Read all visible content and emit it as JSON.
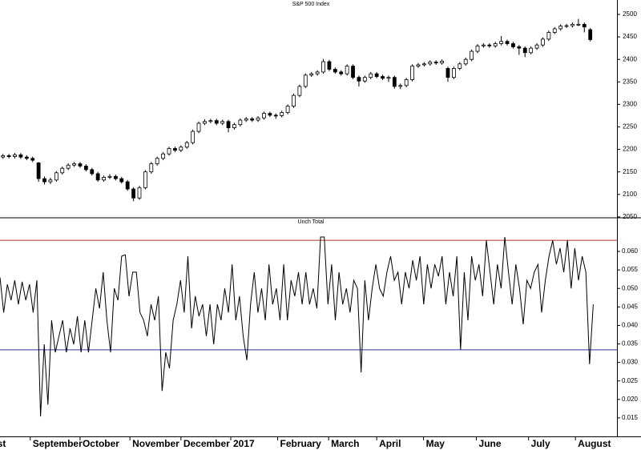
{
  "chart_data": [
    {
      "type": "candlestick",
      "title": "S&P 500 Index",
      "xlim": [
        0,
        104
      ],
      "ylim": [
        2048,
        2532
      ],
      "yticks": [
        2050,
        2100,
        2150,
        2200,
        2250,
        2300,
        2350,
        2400,
        2450,
        2500
      ],
      "up_color": "#ffffff",
      "down_color": "#000000",
      "edge_color": "#000000",
      "open": [
        2183,
        2186,
        2184,
        2188,
        2183,
        2180,
        2170,
        2135,
        2128,
        2132,
        2148,
        2158,
        2165,
        2168,
        2163,
        2155,
        2146,
        2132,
        2138,
        2140,
        2135,
        2128,
        2112,
        2092,
        2115,
        2150,
        2168,
        2180,
        2190,
        2202,
        2198,
        2205,
        2215,
        2240,
        2258,
        2262,
        2264,
        2258,
        2262,
        2248,
        2255,
        2265,
        2268,
        2265,
        2270,
        2280,
        2276,
        2275,
        2282,
        2296,
        2320,
        2340,
        2365,
        2368,
        2372,
        2395,
        2378,
        2372,
        2368,
        2385,
        2360,
        2352,
        2360,
        2368,
        2362,
        2358,
        2360,
        2340,
        2342,
        2355,
        2385,
        2388,
        2390,
        2394,
        2392,
        2380,
        2360,
        2380,
        2390,
        2400,
        2418,
        2430,
        2432,
        2430,
        2435,
        2440,
        2435,
        2428,
        2425,
        2415,
        2425,
        2432,
        2445,
        2460,
        2468,
        2474,
        2475,
        2478,
        2478,
        2466
      ],
      "high": [
        2190,
        2190,
        2192,
        2192,
        2187,
        2184,
        2172,
        2140,
        2137,
        2152,
        2162,
        2169,
        2172,
        2172,
        2167,
        2159,
        2150,
        2142,
        2145,
        2144,
        2139,
        2132,
        2116,
        2119,
        2154,
        2172,
        2184,
        2194,
        2206,
        2206,
        2209,
        2219,
        2244,
        2262,
        2267,
        2268,
        2268,
        2266,
        2266,
        2259,
        2269,
        2272,
        2272,
        2274,
        2284,
        2284,
        2280,
        2286,
        2300,
        2324,
        2344,
        2369,
        2372,
        2376,
        2401,
        2399,
        2382,
        2376,
        2389,
        2389,
        2364,
        2364,
        2372,
        2372,
        2366,
        2364,
        2364,
        2346,
        2359,
        2389,
        2392,
        2394,
        2398,
        2398,
        2400,
        2384,
        2384,
        2394,
        2404,
        2422,
        2434,
        2436,
        2436,
        2439,
        2452,
        2444,
        2439,
        2432,
        2429,
        2429,
        2436,
        2449,
        2464,
        2472,
        2478,
        2479,
        2482,
        2490,
        2482,
        2470
      ],
      "low": [
        2179,
        2180,
        2180,
        2179,
        2176,
        2172,
        2128,
        2122,
        2123,
        2128,
        2144,
        2154,
        2161,
        2159,
        2151,
        2142,
        2128,
        2128,
        2134,
        2131,
        2124,
        2108,
        2085,
        2088,
        2111,
        2146,
        2164,
        2176,
        2186,
        2194,
        2194,
        2201,
        2211,
        2236,
        2254,
        2258,
        2254,
        2254,
        2238,
        2244,
        2251,
        2261,
        2261,
        2261,
        2266,
        2272,
        2268,
        2271,
        2278,
        2292,
        2316,
        2336,
        2361,
        2364,
        2368,
        2374,
        2368,
        2364,
        2364,
        2356,
        2340,
        2348,
        2356,
        2358,
        2354,
        2350,
        2335,
        2334,
        2338,
        2351,
        2381,
        2384,
        2386,
        2388,
        2388,
        2350,
        2356,
        2376,
        2386,
        2396,
        2414,
        2426,
        2426,
        2426,
        2431,
        2431,
        2424,
        2410,
        2405,
        2411,
        2421,
        2428,
        2441,
        2456,
        2464,
        2470,
        2471,
        2474,
        2460,
        2440
      ],
      "close": [
        2186,
        2184,
        2188,
        2183,
        2180,
        2176,
        2135,
        2128,
        2132,
        2148,
        2158,
        2165,
        2168,
        2163,
        2155,
        2146,
        2132,
        2138,
        2140,
        2135,
        2128,
        2112,
        2092,
        2115,
        2150,
        2168,
        2180,
        2190,
        2202,
        2198,
        2205,
        2215,
        2240,
        2258,
        2262,
        2264,
        2258,
        2262,
        2248,
        2255,
        2265,
        2268,
        2265,
        2270,
        2280,
        2276,
        2275,
        2282,
        2296,
        2320,
        2340,
        2365,
        2368,
        2372,
        2395,
        2378,
        2372,
        2368,
        2385,
        2360,
        2352,
        2360,
        2368,
        2362,
        2358,
        2360,
        2340,
        2342,
        2355,
        2385,
        2388,
        2390,
        2394,
        2392,
        2396,
        2360,
        2380,
        2390,
        2400,
        2418,
        2430,
        2432,
        2430,
        2435,
        2440,
        2435,
        2428,
        2425,
        2415,
        2425,
        2432,
        2445,
        2460,
        2468,
        2474,
        2475,
        2478,
        2478,
        2472,
        2444
      ]
    },
    {
      "type": "line",
      "title": "Unch Total",
      "color": "#000000",
      "xlim": [
        0,
        104
      ],
      "ylim": [
        0.01,
        0.0691
      ],
      "yticks": [
        {
          "value": 0.015,
          "label": "0.015"
        },
        {
          "value": 0.02,
          "label": "0.020"
        },
        {
          "value": 0.025,
          "label": "0.025"
        },
        {
          "value": 0.03,
          "label": "0.030"
        },
        {
          "value": 0.035,
          "label": "0.035"
        },
        {
          "value": 0.04,
          "label": "0.040"
        },
        {
          "value": 0.045,
          "label": "0.045"
        },
        {
          "value": 0.05,
          "label": "0.050"
        },
        {
          "value": 0.055,
          "label": "0.055"
        },
        {
          "value": 0.06,
          "label": "0.060"
        }
      ],
      "reference_lines": [
        {
          "value": 0.063,
          "color": "#b03030"
        },
        {
          "value": 0.0334,
          "color": "#3535a8"
        }
      ],
      "xticks": [
        {
          "value": -5,
          "label": "August"
        },
        {
          "value": 5.1,
          "label": "September"
        },
        {
          "value": 13.5,
          "label": "October"
        },
        {
          "value": 21.9,
          "label": "November"
        },
        {
          "value": 30.5,
          "label": "December"
        },
        {
          "value": 38.9,
          "label": "2017"
        },
        {
          "value": 46.8,
          "label": "February"
        },
        {
          "value": 55.4,
          "label": "March"
        },
        {
          "value": 63.5,
          "label": "April"
        },
        {
          "value": 71.4,
          "label": "May"
        },
        {
          "value": 80.3,
          "label": "June"
        },
        {
          "value": 89.1,
          "label": "July"
        },
        {
          "value": 97.0,
          "label": "August"
        }
      ],
      "values": [
        0.053,
        0.0435,
        0.0511,
        0.0468,
        0.0522,
        0.0457,
        0.0518,
        0.0468,
        0.0511,
        0.0435,
        0.0522,
        0.0154,
        0.0349,
        0.0186,
        0.0414,
        0.0327,
        0.0371,
        0.0414,
        0.0327,
        0.0392,
        0.0349,
        0.0425,
        0.0327,
        0.0414,
        0.0327,
        0.0414,
        0.05,
        0.0446,
        0.0544,
        0.0414,
        0.0327,
        0.05,
        0.0468,
        0.0587,
        0.0591,
        0.0479,
        0.0544,
        0.0544,
        0.0435,
        0.0414,
        0.0371,
        0.0457,
        0.0414,
        0.0479,
        0.0223,
        0.0327,
        0.0284,
        0.0414,
        0.0457,
        0.0522,
        0.0435,
        0.0587,
        0.0392,
        0.0479,
        0.0425,
        0.0457,
        0.0371,
        0.0457,
        0.0349,
        0.0457,
        0.0414,
        0.05,
        0.0435,
        0.0565,
        0.0414,
        0.0479,
        0.0371,
        0.0306,
        0.0457,
        0.0544,
        0.0435,
        0.05,
        0.0414,
        0.0565,
        0.0457,
        0.05,
        0.0414,
        0.0565,
        0.0414,
        0.0522,
        0.0479,
        0.0544,
        0.0457,
        0.0544,
        0.0457,
        0.05,
        0.0446,
        0.0639,
        0.0639,
        0.0457,
        0.0565,
        0.0414,
        0.0544,
        0.0457,
        0.05,
        0.0435,
        0.0522,
        0.05,
        0.0273,
        0.0522,
        0.0414,
        0.05,
        0.0565,
        0.05,
        0.0479,
        0.0544,
        0.0587,
        0.0522,
        0.0544,
        0.0457,
        0.0544,
        0.05,
        0.0576,
        0.0522,
        0.0587,
        0.0457,
        0.0565,
        0.05,
        0.0565,
        0.0533,
        0.0587,
        0.0457,
        0.0544,
        0.0479,
        0.0587,
        0.0334,
        0.0544,
        0.0414,
        0.0587,
        0.0522,
        0.0565,
        0.0479,
        0.063,
        0.0544,
        0.0457,
        0.0565,
        0.05,
        0.0639,
        0.0544,
        0.0457,
        0.0565,
        0.05,
        0.0403,
        0.0522,
        0.05,
        0.0544,
        0.0565,
        0.0435,
        0.0522,
        0.0587,
        0.063,
        0.0565,
        0.0609,
        0.0544,
        0.063,
        0.05,
        0.0609,
        0.0522,
        0.0587,
        0.0544,
        0.0295,
        0.0457
      ]
    }
  ]
}
